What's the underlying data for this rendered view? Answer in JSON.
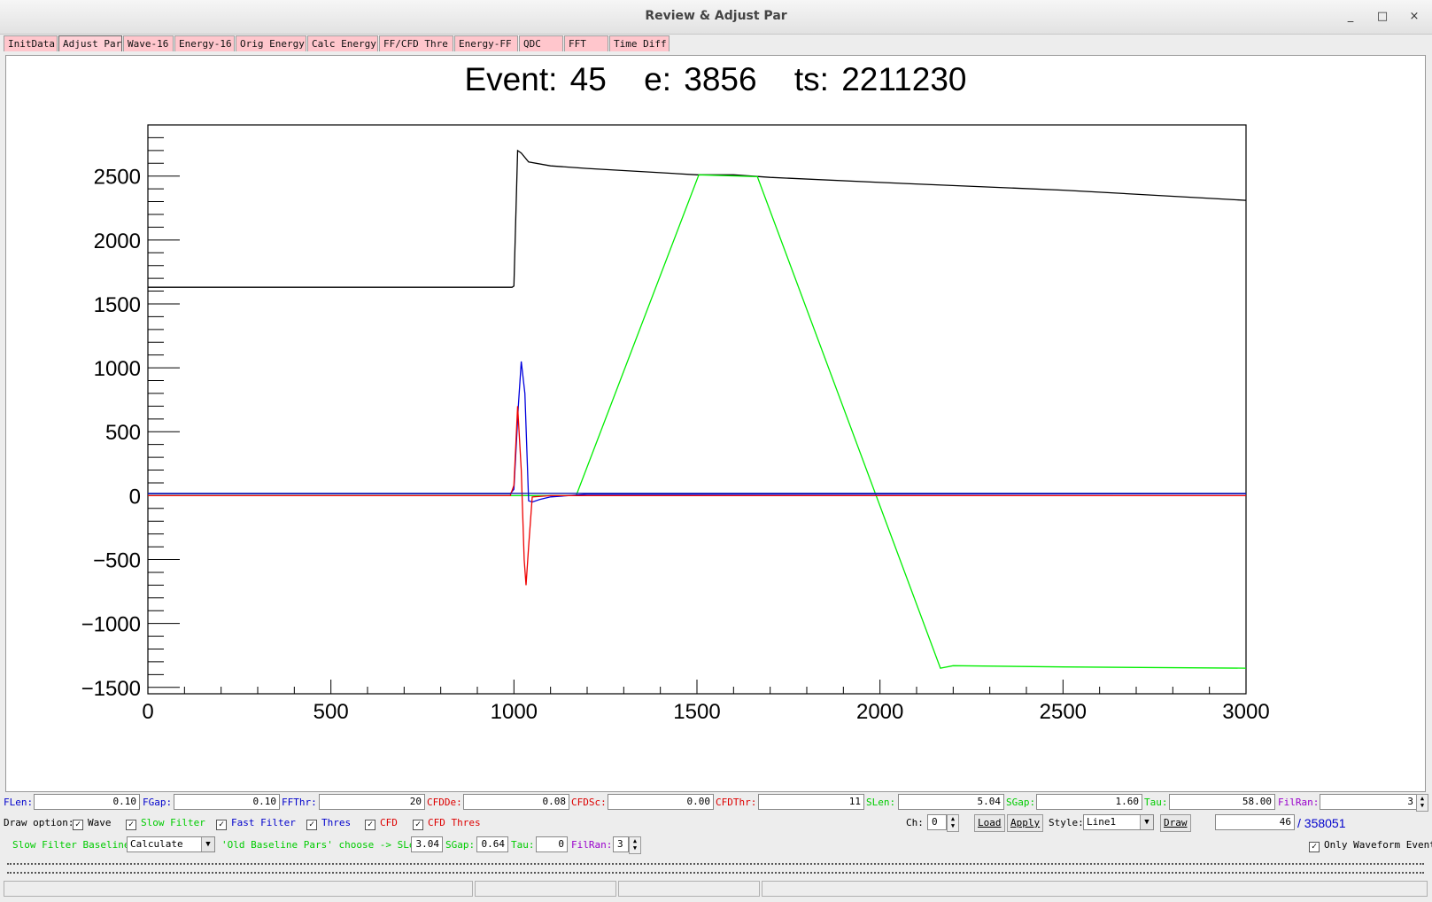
{
  "window": {
    "title": "Review & Adjust Par",
    "minimize": "_",
    "maximize": "□",
    "close": "×"
  },
  "tabs": [
    "InitData",
    "Adjust Par",
    "Wave-16",
    "Energy-16",
    "Orig Energy",
    "Calc Energy",
    "FF/CFD Thre",
    "Energy-FF",
    "QDC",
    "FFT",
    "Time Diff"
  ],
  "active_tab": "Adjust Par",
  "header": {
    "event": "Event: 45",
    "energy": "e: 3856",
    "timestamp": "ts: 2211230"
  },
  "chart_data": {
    "type": "line",
    "title": "Event: 45   e: 3856   ts: 2211230",
    "xlim": [
      0,
      3000
    ],
    "ylim": [
      -1550,
      2900
    ],
    "x_ticks": [
      0,
      500,
      1000,
      1500,
      2000,
      2500,
      3000
    ],
    "y_ticks": [
      -1500,
      -1000,
      -500,
      0,
      500,
      1000,
      1500,
      2000,
      2500
    ],
    "x_tick_labels": [
      "0",
      "500",
      "1000",
      "1500",
      "2000",
      "2500",
      "3000"
    ],
    "y_tick_labels": [
      "−1500",
      "−1000",
      "−500",
      "0",
      "500",
      "1000",
      "1500",
      "2000",
      "2500"
    ],
    "series": [
      {
        "color": "#000000",
        "points": [
          [
            0,
            1630
          ],
          [
            995,
            1630
          ],
          [
            1000,
            1640
          ],
          [
            1010,
            2700
          ],
          [
            1020,
            2680
          ],
          [
            1040,
            2610
          ],
          [
            1100,
            2580
          ],
          [
            1200,
            2560
          ],
          [
            1500,
            2510
          ],
          [
            1600,
            2510
          ],
          [
            1700,
            2490
          ],
          [
            2000,
            2450
          ],
          [
            2500,
            2390
          ],
          [
            3000,
            2310
          ]
        ]
      },
      {
        "color": "#00ee00",
        "points": [
          [
            0,
            0
          ],
          [
            1170,
            0
          ],
          [
            1505,
            2510
          ],
          [
            1665,
            2495
          ],
          [
            2165,
            -1350
          ],
          [
            2200,
            -1330
          ],
          [
            2500,
            -1340
          ],
          [
            3000,
            -1350
          ]
        ]
      },
      {
        "color": "#0000dd",
        "points": [
          [
            0,
            15
          ],
          [
            990,
            15
          ],
          [
            1000,
            50
          ],
          [
            1012,
            700
          ],
          [
            1020,
            1050
          ],
          [
            1030,
            800
          ],
          [
            1040,
            -40
          ],
          [
            1050,
            -50
          ],
          [
            1070,
            -30
          ],
          [
            1100,
            -10
          ],
          [
            1200,
            10
          ],
          [
            3000,
            15
          ]
        ]
      },
      {
        "color": "#ee0000",
        "points": [
          [
            0,
            0
          ],
          [
            990,
            0
          ],
          [
            1000,
            80
          ],
          [
            1010,
            700
          ],
          [
            1020,
            200
          ],
          [
            1028,
            -500
          ],
          [
            1033,
            -700
          ],
          [
            1040,
            -400
          ],
          [
            1050,
            -10
          ],
          [
            1100,
            0
          ],
          [
            3000,
            0
          ]
        ]
      },
      {
        "color": "#1020b0",
        "points": [
          [
            0,
            18
          ],
          [
            3000,
            18
          ]
        ]
      }
    ]
  },
  "params": {
    "flen_label": "FLen:",
    "flen": "0.10",
    "fgap_label": "FGap:",
    "fgap": "0.10",
    "ffthr_label": "FFThr:",
    "ffthr": "20",
    "cfdde_label": "CFDDe:",
    "cfdde": "0.08",
    "cfdsc_label": "CFDSc:",
    "cfdsc": "0.00",
    "cfdthr_label": "CFDThr:",
    "cfdthr": "11",
    "slen_label": "SLen:",
    "slen": "5.04",
    "sgap_label": "SGap:",
    "sgap": "1.60",
    "tau_label": "Tau:",
    "tau": "58.00",
    "filran_label": "FilRan:",
    "filran": "3"
  },
  "draw_options": {
    "label": "Draw option:",
    "wave": "Wave",
    "slow_filter": "Slow Filter",
    "fast_filter": "Fast Filter",
    "thres": "Thres",
    "cfd": "CFD",
    "cfd_thres": "CFD Thres",
    "check": "✓"
  },
  "controls": {
    "ch_label": "Ch:",
    "ch": "0",
    "load": "Load",
    "apply": "Apply",
    "style_label": "Style:",
    "style": "Line1",
    "draw": "Draw",
    "event_num": "46",
    "event_total": "/ 358051"
  },
  "baseline": {
    "label": "Slow Filter Baseline:",
    "mode": "Calculate",
    "old_label": "'Old Baseline Pars' choose -> SLen:",
    "slen": "3.04",
    "sgap_label": "SGap:",
    "sgap": "0.64",
    "tau_label": "Tau:",
    "tau": "0",
    "filran_label": "FilRan:",
    "filran": "3",
    "only_waveform": "Only Waveform Event"
  },
  "colors": {
    "green": "#00cc00",
    "blue": "#0000cc",
    "red": "#dd0000",
    "purple": "#9900cc",
    "tab_bg": "#ffc6cc"
  }
}
